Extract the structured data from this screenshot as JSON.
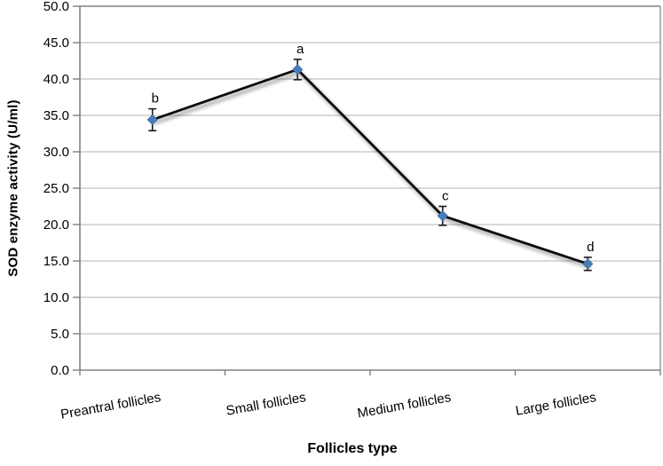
{
  "chart_data": {
    "type": "line",
    "xlabel": "Follicles type",
    "ylabel": "SOD enzyme activity (U/ml)",
    "categories": [
      "Preantral follicles",
      "Small follicles",
      "Medium follicles",
      "Large follicles"
    ],
    "series": [
      {
        "name": "SOD enzyme activity",
        "values": [
          34.4,
          41.3,
          21.2,
          14.6
        ],
        "error_bars": [
          1.5,
          1.4,
          1.3,
          0.9
        ],
        "point_labels": [
          "b",
          "a",
          "c",
          "d"
        ]
      }
    ],
    "ylim": [
      0,
      50
    ],
    "ytick_step": 5,
    "ytick_decimals": 1,
    "grid": true,
    "legend": "none",
    "marker": "diamond",
    "xtick_label_rotation_deg": -10
  },
  "colors": {
    "background": "#ffffff",
    "line": "#111111",
    "line_shadow": "#000000",
    "marker_fill": "#4a7ebb",
    "marker_stroke": "#38689e",
    "grid": "#b3b3b3",
    "plot_border": "#808080",
    "axis": "#808080",
    "error_bar": "#1a1a1a",
    "text": "#000000"
  }
}
